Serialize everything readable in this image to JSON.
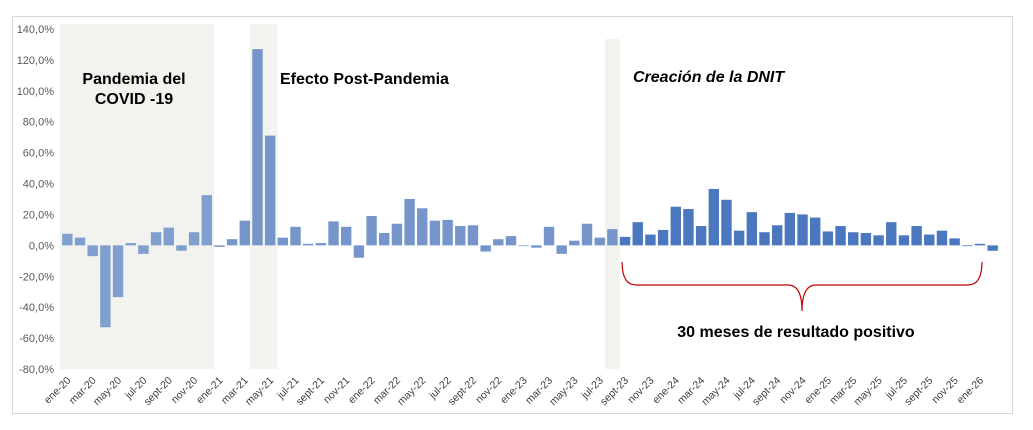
{
  "chart_data": {
    "type": "bar",
    "title": "",
    "xlabel": "",
    "ylabel": "",
    "ylim": [
      -80,
      140
    ],
    "y_ticks": [
      -80,
      -60,
      -40,
      -20,
      0,
      20,
      40,
      60,
      80,
      100,
      120,
      140
    ],
    "y_tick_labels": [
      "-80,0%",
      "-60,0%",
      "-40,0%",
      "-20,0%",
      "0,0%",
      "20,0%",
      "40,0%",
      "60,0%",
      "80,0%",
      "100,0%",
      "120,0%",
      "140,0%"
    ],
    "categories": [
      "ene-20",
      "feb-20",
      "mar-20",
      "abr-20",
      "may-20",
      "jun-20",
      "jul-20",
      "ago-20",
      "sept-20",
      "oct-20",
      "nov-20",
      "dic-20",
      "ene-21",
      "feb-21",
      "mar-21",
      "abr-21",
      "may-21",
      "jun-21",
      "jul-21",
      "ago-21",
      "sept-21",
      "oct-21",
      "nov-21",
      "dic-21",
      "ene-22",
      "feb-22",
      "mar-22",
      "abr-22",
      "may-22",
      "jun-22",
      "jul-22",
      "ago-22",
      "sept-22",
      "oct-22",
      "nov-22",
      "dic-22",
      "ene-23",
      "feb-23",
      "mar-23",
      "abr-23",
      "may-23",
      "jun-23",
      "jul-23",
      "ago-23",
      "sept-23",
      "oct-23",
      "nov-23",
      "dic-23",
      "ene-24",
      "feb-24",
      "mar-24",
      "abr-24",
      "may-24",
      "jun-24",
      "jul-24",
      "ago-24",
      "sept-24",
      "oct-24",
      "nov-24",
      "dic-24",
      "ene-25",
      "feb-25",
      "mar-25",
      "abr-25",
      "may-25",
      "jun-25",
      "jul-25",
      "ago-25",
      "sept-25",
      "oct-25",
      "nov-25",
      "dic-25",
      "ene-26",
      "feb-26"
    ],
    "x_tick_labels": [
      "ene-20",
      "mar-20",
      "may-20",
      "jul-20",
      "sept-20",
      "nov-20",
      "ene-21",
      "mar-21",
      "may-21",
      "jul-21",
      "sept-21",
      "nov-21",
      "ene-22",
      "mar-22",
      "may-22",
      "jul-22",
      "sept-22",
      "nov-22",
      "ene-23",
      "mar-23",
      "may-23",
      "jul-23",
      "sept-23",
      "nov-23",
      "ene-24",
      "mar-24",
      "may-24",
      "jul-24",
      "sept-24",
      "nov-24",
      "ene-25",
      "mar-25",
      "may-25",
      "jul-25",
      "sept-25",
      "nov-25",
      "ene-26"
    ],
    "values": [
      7.5,
      5,
      -7,
      -53,
      -33.5,
      1.5,
      -5.5,
      8.5,
      11.5,
      -3.5,
      8.5,
      32.5,
      -1,
      4,
      16,
      127,
      71,
      5,
      12,
      1,
      1.5,
      15.5,
      12,
      -8,
      19,
      8,
      14,
      30,
      24,
      16,
      16.5,
      12.5,
      13,
      -4,
      4,
      6,
      -0.5,
      -1.5,
      12,
      -5.5,
      3,
      14,
      5,
      10.5,
      5.5,
      15,
      7,
      10,
      25,
      23.5,
      12.5,
      36.5,
      29.5,
      9.5,
      21.5,
      8.5,
      13,
      21,
      20,
      18,
      9,
      12.5,
      8.5,
      8,
      6.5,
      15,
      6.5,
      12.5,
      7,
      9.5,
      4.5,
      -0.5,
      1,
      -3.5
    ],
    "bar_colors": {
      "covid": "#7f9fcf",
      "post_pandemia": "#7595cb",
      "dnit": "#4a77be"
    },
    "regions": [
      {
        "label": "Pandemia del COVID -19",
        "from": "ene-20",
        "to": "dic-20",
        "color": "#f2f2ee"
      },
      {
        "label": "Efecto Post-Pandemia",
        "from": "abr-21",
        "to": "may-21",
        "color": "#f2f2ee"
      },
      {
        "label": "Creación de la DNIT",
        "from": "ago-23",
        "to": "ago-23",
        "color": "#f2f2ee"
      }
    ],
    "annotations": {
      "covid_line1": "Pandemia del",
      "covid_line2": "COVID -19",
      "post_pandemia": "Efecto Post-Pandemia",
      "dnit": "Creación de la DNIT",
      "positive": "30 meses de resultado positivo",
      "bracket_color": "#c00000"
    }
  }
}
